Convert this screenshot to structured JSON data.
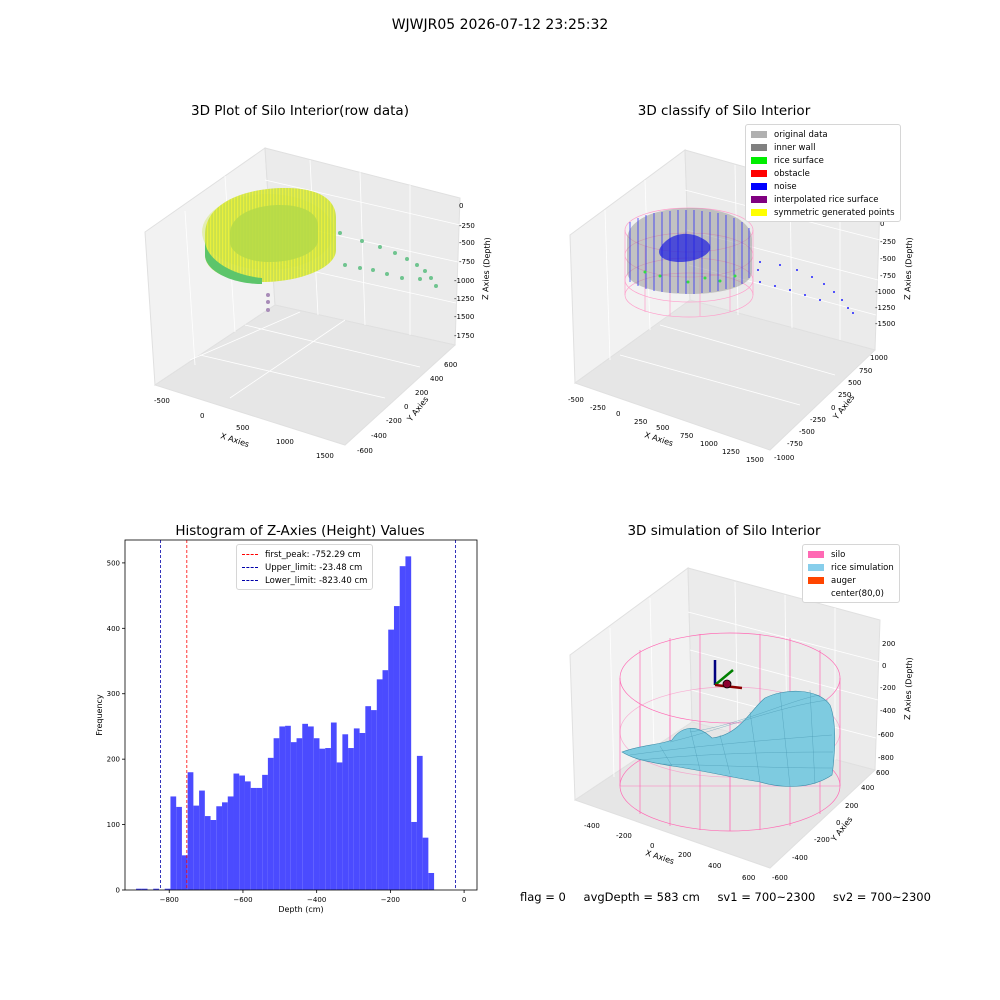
{
  "suptitle": "WJWJR05 2026-07-12 23:25:32",
  "footer": {
    "flag": "flag = 0",
    "avg": "avgDepth = 583 cm",
    "sv1": "sv1 = 700~2300",
    "sv2": "sv2 = 700~2300"
  },
  "panels": {
    "raw": {
      "title": "3D Plot of Silo Interior(row data)",
      "xlabel": "X Axies",
      "ylabel": "Y Axies",
      "zlabel": "Z Axies (Depth)",
      "xticks": [
        "-500",
        "0",
        "500",
        "1000",
        "1500"
      ],
      "yticks": [
        "600",
        "400",
        "200",
        "0",
        "-200",
        "-400",
        "-600"
      ],
      "zticks": [
        "0",
        "-250",
        "-500",
        "-750",
        "-1000",
        "-1250",
        "-1500",
        "-1750"
      ]
    },
    "classify": {
      "title": "3D classify of Silo Interior",
      "xlabel": "X Axies",
      "ylabel": "Y Axies",
      "zlabel": "Z Axies (Depth)",
      "xticks": [
        "-500",
        "-250",
        "0",
        "250",
        "500",
        "750",
        "1000",
        "1250",
        "1500"
      ],
      "yticks": [
        "1000",
        "750",
        "500",
        "250",
        "0",
        "-250",
        "-500",
        "-750",
        "-1000"
      ],
      "zticks": [
        "0",
        "-250",
        "-500",
        "-750",
        "-1000",
        "-1250",
        "-1500"
      ],
      "legend": [
        {
          "label": "original data",
          "color": "#b0b0b0"
        },
        {
          "label": "inner wall",
          "color": "#808080"
        },
        {
          "label": "rice surface",
          "color": "#00ee00"
        },
        {
          "label": "obstacle",
          "color": "#ff0000"
        },
        {
          "label": "noise",
          "color": "#0000ff"
        },
        {
          "label": "interpolated rice surface",
          "color": "#800080"
        },
        {
          "label": "symmetric generated points",
          "color": "#ffff00"
        }
      ]
    },
    "simulation": {
      "title": "3D simulation of Silo Interior",
      "xlabel": "X Axies",
      "ylabel": "Y Axies",
      "zlabel": "Z Axies (Depth)",
      "xticks": [
        "-400",
        "-200",
        "0",
        "200",
        "400",
        "600"
      ],
      "yticks": [
        "600",
        "400",
        "200",
        "0",
        "-200",
        "-400",
        "-600"
      ],
      "zticks": [
        "200",
        "0",
        "-200",
        "-400",
        "-600",
        "-800"
      ],
      "legend": [
        {
          "label": "silo",
          "color": "#ff69b4"
        },
        {
          "label": "rice simulation",
          "color": "#87ceeb"
        },
        {
          "label": "auger",
          "color": "#ff4500"
        },
        {
          "label": "center(80,0)",
          "color": "#ffffff"
        }
      ]
    }
  },
  "chart_data": {
    "type": "bar",
    "title": "Histogram of Z-Axies (Height) Values",
    "xlabel": "Depth (cm)",
    "ylabel": "Frequency",
    "xlim": [
      -920,
      35
    ],
    "ylim": [
      0,
      535
    ],
    "xticks": [
      -800,
      -600,
      -400,
      -200,
      0
    ],
    "xtick_labels": [
      "−800",
      "−600",
      "−400",
      "−200",
      "0"
    ],
    "yticks": [
      0,
      100,
      200,
      300,
      400,
      500
    ],
    "bar_color": "#4b4bff",
    "bin_start": -890,
    "bin_width": 15.55,
    "values": [
      2,
      2,
      0,
      2,
      0,
      2,
      143,
      127,
      53,
      180,
      129,
      152,
      113,
      107,
      128,
      134,
      143,
      178,
      175,
      166,
      156,
      156,
      176,
      202,
      232,
      250,
      251,
      226,
      232,
      254,
      250,
      232,
      216,
      217,
      256,
      195,
      238,
      217,
      247,
      240,
      281,
      275,
      322,
      336,
      398,
      434,
      495,
      510,
      104,
      205,
      80,
      26
    ],
    "lines": [
      {
        "label": "first_peak: -752.29 cm",
        "x": -752.29,
        "color": "#ff0000"
      },
      {
        "label": "Upper_limit: -23.48 cm",
        "x": -23.48,
        "color": "#0000aa"
      },
      {
        "label": "Lower_limit: -823.40 cm",
        "x": -823.4,
        "color": "#0000aa"
      }
    ]
  }
}
